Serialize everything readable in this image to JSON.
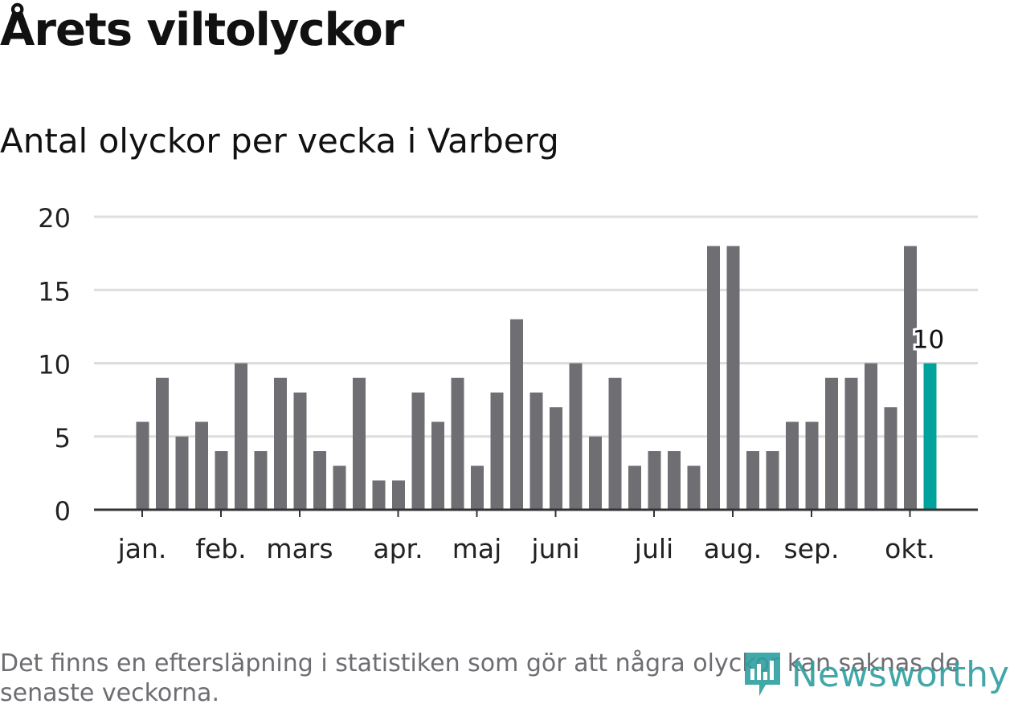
{
  "title": "Årets viltolyckor",
  "subtitle": "Antal olyckor per vecka i Varberg",
  "note": "Det finns en eftersläpning i statistiken som gör att några olyckor kan saknas de senaste veckorna.",
  "logo_text": "Newsworthy",
  "colors": {
    "bar": "#6f6e73",
    "highlight": "#00a39b",
    "grid": "#dddddd",
    "axis": "#333333",
    "logo": "#2e9ea0"
  },
  "chart_data": {
    "type": "bar",
    "title": "Antal olyckor per vecka i Varberg",
    "xlabel": "",
    "ylabel": "",
    "ylim": [
      0,
      20
    ],
    "yticks": [
      0,
      5,
      10,
      15,
      20
    ],
    "grid": true,
    "week_values": [
      6,
      9,
      5,
      6,
      4,
      10,
      4,
      9,
      8,
      4,
      3,
      9,
      2,
      2,
      8,
      6,
      9,
      3,
      8,
      13,
      8,
      7,
      10,
      5,
      9,
      3,
      4,
      4,
      3,
      18,
      18,
      4,
      4,
      6,
      6,
      9,
      9,
      10,
      7,
      18,
      10
    ],
    "month_labels": [
      {
        "label": "jan.",
        "week_index": 0
      },
      {
        "label": "feb.",
        "week_index": 4
      },
      {
        "label": "mars",
        "week_index": 8
      },
      {
        "label": "apr.",
        "week_index": 13
      },
      {
        "label": "maj",
        "week_index": 17
      },
      {
        "label": "juni",
        "week_index": 21
      },
      {
        "label": "juli",
        "week_index": 26
      },
      {
        "label": "aug.",
        "week_index": 30
      },
      {
        "label": "sep.",
        "week_index": 34
      },
      {
        "label": "okt.",
        "week_index": 39
      }
    ],
    "highlight_index": 40,
    "annotation": {
      "text": "10",
      "week_index": 40
    }
  }
}
